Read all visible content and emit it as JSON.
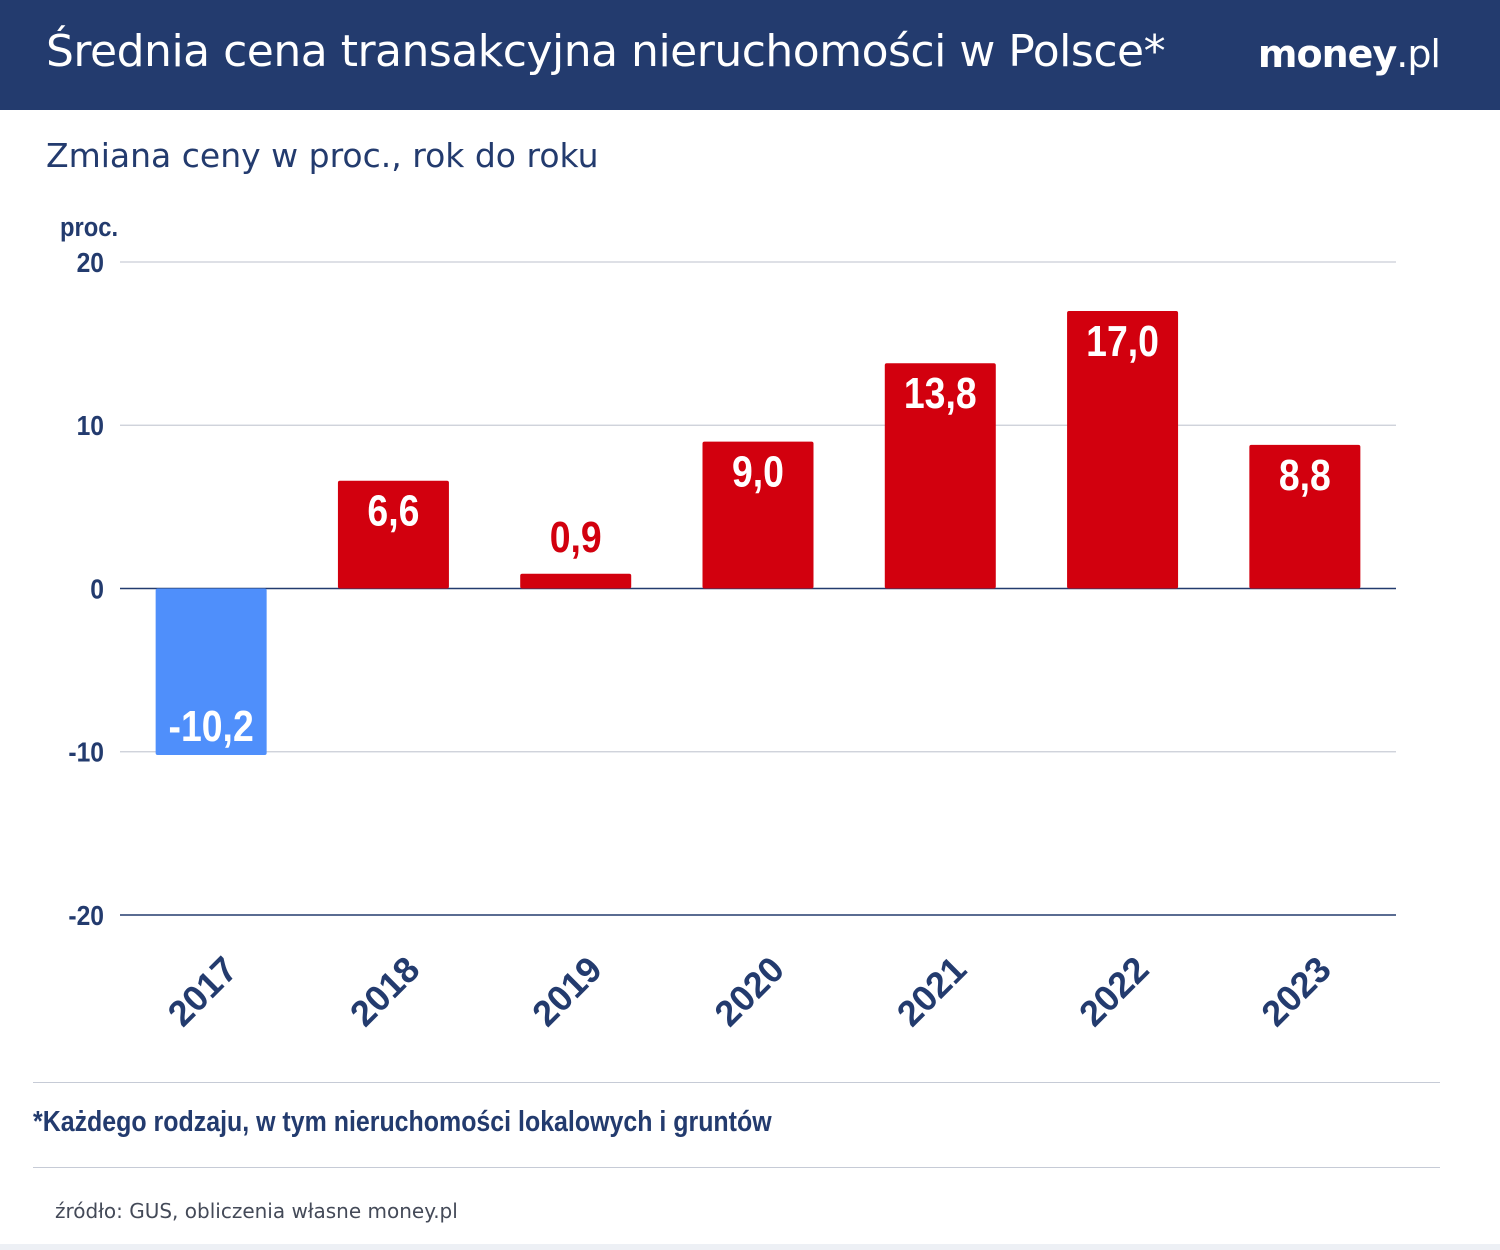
{
  "header": {
    "title": "Średnia cena transakcyjna nieruchomości w Polsce*",
    "brand_bold": "money",
    "brand_light": ".pl"
  },
  "subtitle": "Zmiana ceny w proc., rok do roku",
  "footnote": "*Każdego rodzaju, w tym nieruchomości lokalowych i gruntów",
  "source": "źródło: GUS, obliczenia własne money.pl",
  "colors": {
    "header_bg": "#233b6e",
    "positive_bar": "#d2000e",
    "negative_bar": "#4f8ffb",
    "text_dark": "#233b6e",
    "grid": "#c9cdd6"
  },
  "chart_data": {
    "type": "bar",
    "title": "Średnia cena transakcyjna nieruchomości w Polsce*",
    "subtitle": "Zmiana ceny w proc., rok do roku",
    "ylabel": "proc.",
    "xlabel": "",
    "categories": [
      "2017",
      "2018",
      "2019",
      "2020",
      "2021",
      "2022",
      "2023"
    ],
    "values": [
      -10.2,
      6.6,
      0.9,
      9.0,
      13.8,
      17.0,
      8.8
    ],
    "value_labels": [
      "-10,2",
      "6,6",
      "0,9",
      "9,0",
      "13,8",
      "17,0",
      "8,8"
    ],
    "yticks": [
      20,
      10,
      0,
      -10,
      -20
    ],
    "ylim": [
      -20,
      20
    ],
    "grid": true,
    "legend": "none"
  }
}
